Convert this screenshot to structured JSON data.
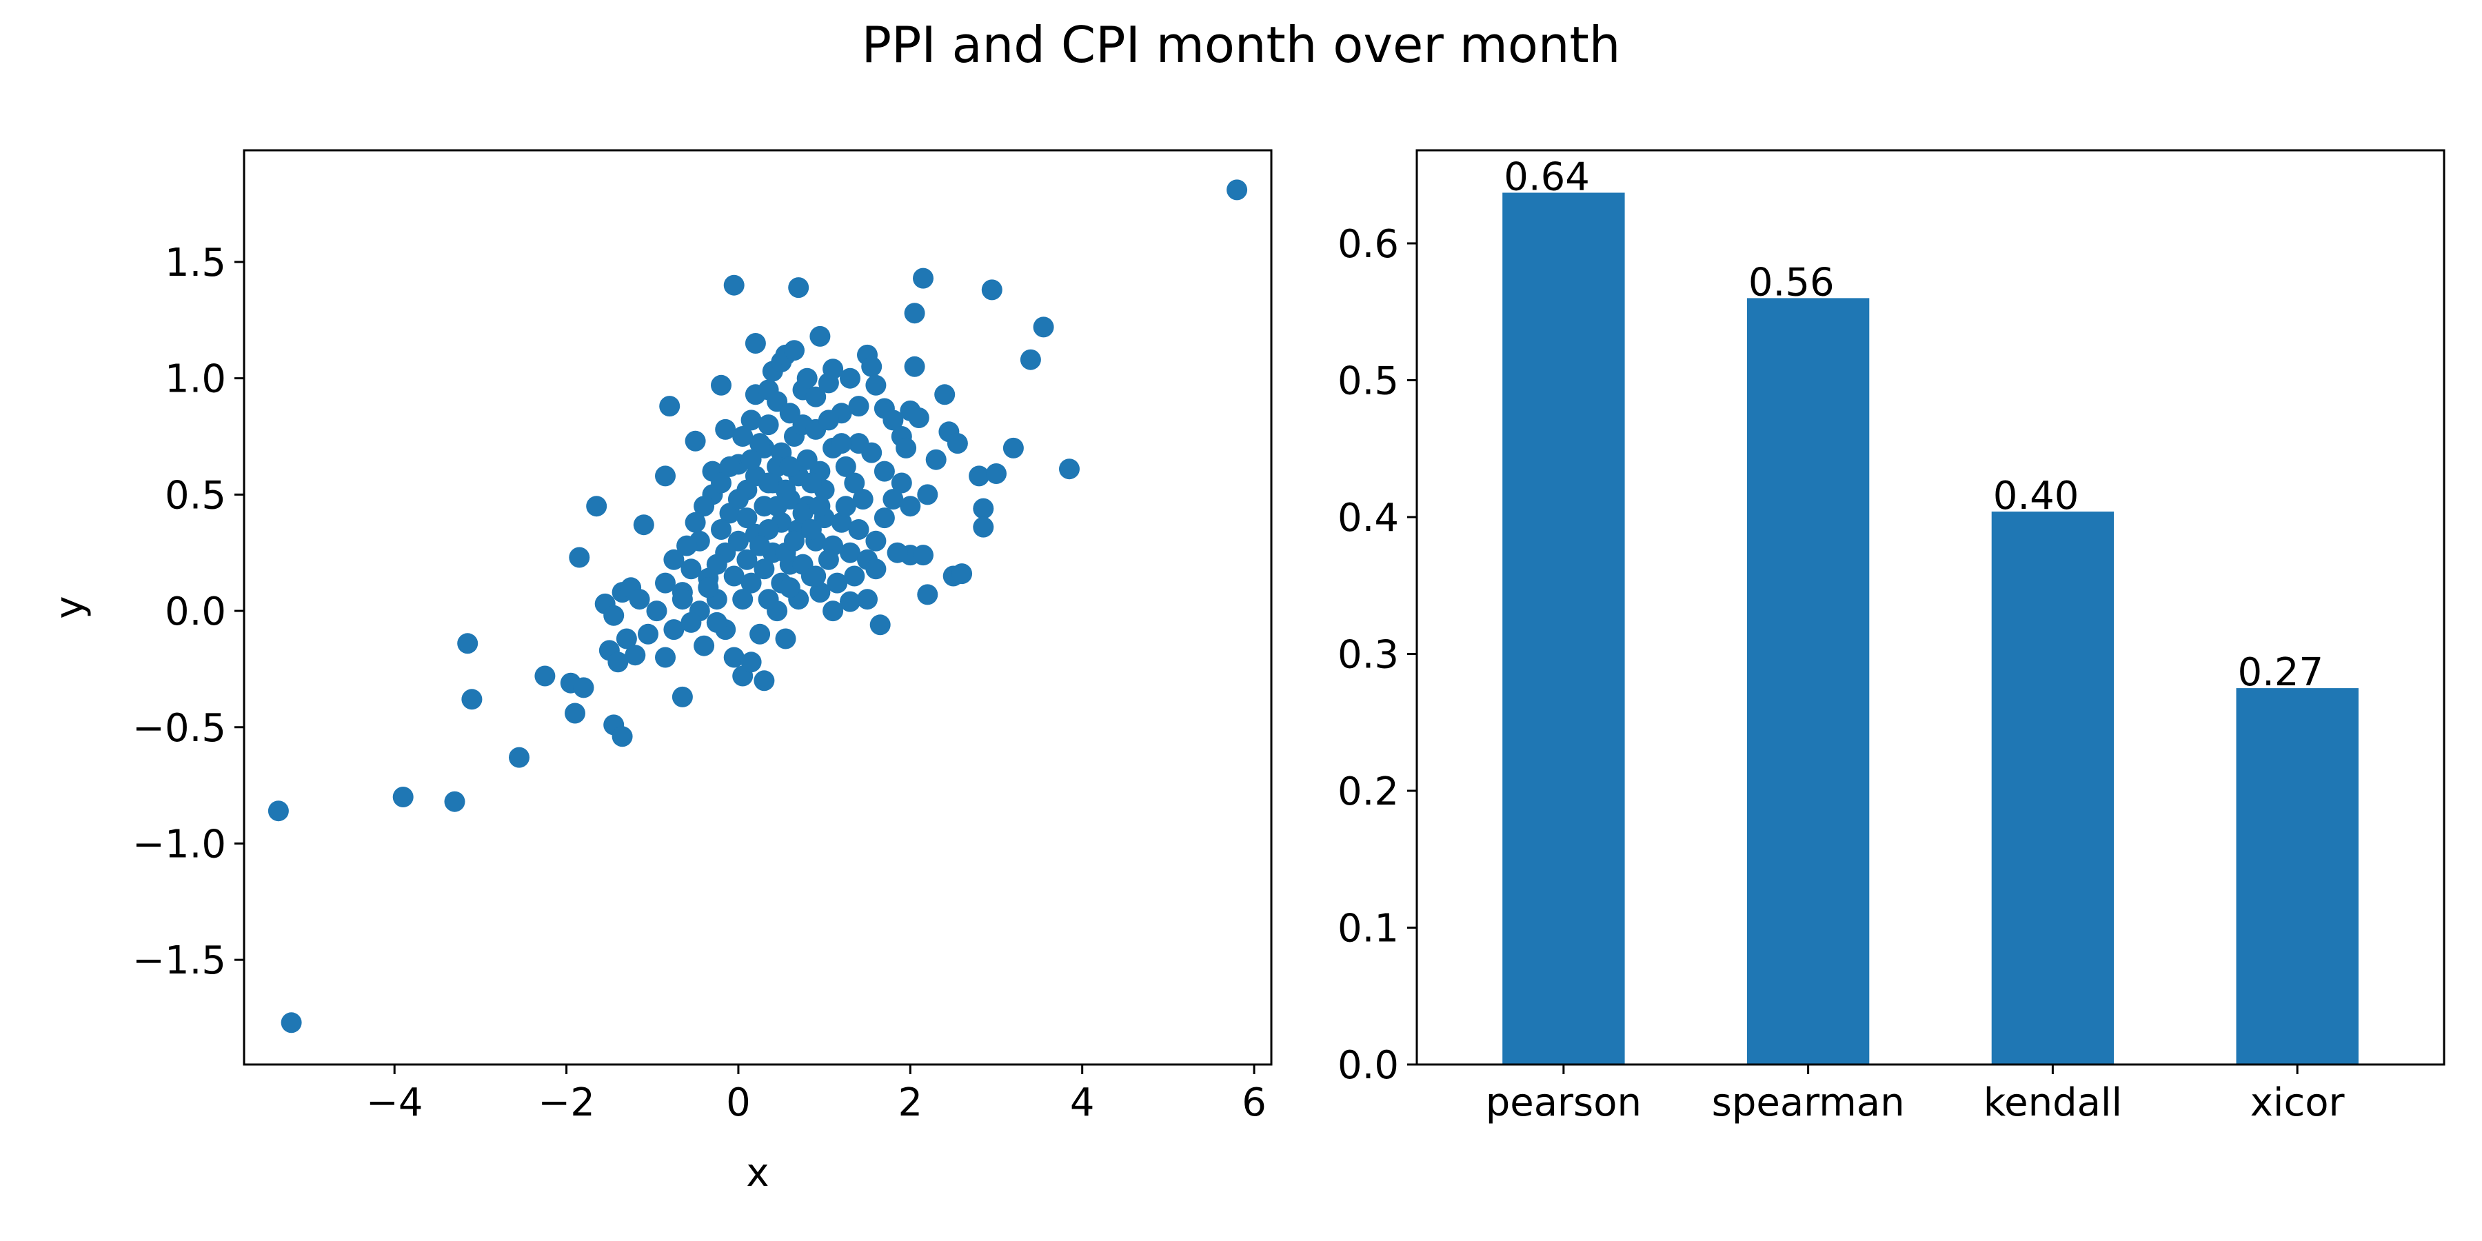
{
  "figure": {
    "title": "PPI and CPI month over month"
  },
  "colors": {
    "series": "#1f77b4"
  },
  "chart_data": [
    {
      "type": "scatter",
      "title": "",
      "xlabel": "x",
      "ylabel": "y",
      "xlim": [
        -5.75,
        6.2
      ],
      "ylim": [
        -1.95,
        1.98
      ],
      "xticks": [
        -4,
        -2,
        0,
        2,
        4,
        6
      ],
      "xtick_labels": [
        "−4",
        "−2",
        "0",
        "2",
        "4",
        "6"
      ],
      "yticks": [
        -1.5,
        -1.0,
        -0.5,
        0.0,
        0.5,
        1.0,
        1.5
      ],
      "ytick_labels": [
        "−1.5",
        "−1.0",
        "−0.5",
        "0.0",
        "0.5",
        "1.0",
        "1.5"
      ],
      "grid": false,
      "points": [
        [
          5.8,
          1.81
        ],
        [
          -5.2,
          -1.77
        ],
        [
          -5.35,
          -0.86
        ],
        [
          -3.9,
          -0.8
        ],
        [
          -3.3,
          -0.82
        ],
        [
          -3.15,
          -0.14
        ],
        [
          -3.1,
          -0.38
        ],
        [
          -2.55,
          -0.63
        ],
        [
          -2.25,
          -0.28
        ],
        [
          -1.9,
          -0.44
        ],
        [
          -1.95,
          -0.31
        ],
        [
          -1.8,
          -0.33
        ],
        [
          -1.45,
          -0.49
        ],
        [
          -1.35,
          -0.54
        ],
        [
          -1.85,
          0.23
        ],
        [
          -1.65,
          0.45
        ],
        [
          -1.5,
          -0.17
        ],
        [
          -1.4,
          -0.22
        ],
        [
          -1.3,
          -0.12
        ],
        [
          -1.2,
          -0.19
        ],
        [
          -1.55,
          0.03
        ],
        [
          -1.45,
          -0.02
        ],
        [
          -1.35,
          0.08
        ],
        [
          -1.25,
          0.1
        ],
        [
          -1.1,
          0.37
        ],
        [
          -1.15,
          0.05
        ],
        [
          -1.05,
          -0.1
        ],
        [
          -0.95,
          0.0
        ],
        [
          -0.85,
          -0.2
        ],
        [
          -0.75,
          -0.08
        ],
        [
          -0.65,
          -0.37
        ],
        [
          -0.85,
          0.12
        ],
        [
          -0.75,
          0.22
        ],
        [
          -0.65,
          0.08
        ],
        [
          -0.55,
          0.18
        ],
        [
          -0.45,
          0.3
        ],
        [
          -0.35,
          0.14
        ],
        [
          -0.25,
          0.05
        ],
        [
          -0.15,
          -0.08
        ],
        [
          -0.05,
          -0.2
        ],
        [
          0.05,
          -0.28
        ],
        [
          0.15,
          -0.22
        ],
        [
          0.25,
          -0.1
        ],
        [
          0.3,
          -0.3
        ],
        [
          0.45,
          0.0
        ],
        [
          0.55,
          -0.12
        ],
        [
          -0.85,
          0.58
        ],
        [
          -0.8,
          0.88
        ],
        [
          -0.5,
          0.73
        ],
        [
          -0.2,
          0.97
        ],
        [
          -0.15,
          0.78
        ],
        [
          -0.05,
          1.4
        ],
        [
          0.0,
          0.63
        ],
        [
          0.1,
          0.52
        ],
        [
          0.15,
          0.82
        ],
        [
          0.2,
          0.93
        ],
        [
          0.2,
          1.15
        ],
        [
          0.3,
          0.7
        ],
        [
          0.35,
          0.95
        ],
        [
          0.4,
          1.03
        ],
        [
          0.5,
          1.07
        ],
        [
          0.55,
          1.1
        ],
        [
          0.65,
          1.12
        ],
        [
          0.7,
          1.39
        ],
        [
          0.75,
          0.95
        ],
        [
          0.8,
          1.0
        ],
        [
          0.9,
          0.92
        ],
        [
          0.95,
          1.18
        ],
        [
          1.05,
          0.98
        ],
        [
          1.1,
          1.04
        ],
        [
          1.2,
          0.85
        ],
        [
          1.3,
          1.0
        ],
        [
          1.4,
          0.88
        ],
        [
          1.5,
          1.1
        ],
        [
          1.55,
          1.05
        ],
        [
          1.6,
          0.97
        ],
        [
          1.7,
          0.87
        ],
        [
          1.8,
          0.82
        ],
        [
          1.9,
          0.75
        ],
        [
          1.95,
          0.7
        ],
        [
          2.0,
          0.86
        ],
        [
          2.05,
          1.28
        ],
        [
          2.05,
          1.05
        ],
        [
          2.15,
          1.43
        ],
        [
          2.1,
          0.83
        ],
        [
          2.2,
          0.5
        ],
        [
          2.3,
          0.65
        ],
        [
          2.4,
          0.93
        ],
        [
          2.45,
          0.77
        ],
        [
          2.55,
          0.72
        ],
        [
          2.0,
          0.24
        ],
        [
          2.15,
          0.24
        ],
        [
          2.2,
          0.07
        ],
        [
          2.5,
          0.15
        ],
        [
          2.6,
          0.16
        ],
        [
          2.8,
          0.58
        ],
        [
          2.85,
          0.44
        ],
        [
          2.85,
          0.36
        ],
        [
          2.95,
          1.38
        ],
        [
          3.0,
          0.59
        ],
        [
          3.2,
          0.7
        ],
        [
          3.4,
          1.08
        ],
        [
          3.55,
          1.22
        ],
        [
          3.85,
          0.61
        ],
        [
          1.65,
          -0.06
        ],
        [
          1.5,
          0.05
        ],
        [
          1.3,
          0.04
        ],
        [
          1.1,
          0.0
        ],
        [
          0.95,
          0.08
        ],
        [
          0.85,
          0.15
        ],
        [
          0.7,
          0.05
        ],
        [
          0.6,
          0.2
        ],
        [
          0.5,
          0.12
        ],
        [
          0.4,
          0.25
        ],
        [
          0.3,
          0.18
        ],
        [
          0.2,
          0.33
        ],
        [
          0.1,
          0.22
        ],
        [
          0.0,
          0.3
        ],
        [
          -0.1,
          0.42
        ],
        [
          -0.2,
          0.35
        ],
        [
          -0.3,
          0.5
        ],
        [
          -0.4,
          0.45
        ],
        [
          -0.5,
          0.38
        ],
        [
          -0.6,
          0.28
        ],
        [
          -0.3,
          0.6
        ],
        [
          -0.2,
          0.55
        ],
        [
          -0.1,
          0.62
        ],
        [
          0.0,
          0.48
        ],
        [
          0.1,
          0.4
        ],
        [
          0.2,
          0.58
        ],
        [
          0.3,
          0.45
        ],
        [
          0.4,
          0.55
        ],
        [
          0.5,
          0.38
        ],
        [
          0.6,
          0.48
        ],
        [
          0.7,
          0.35
        ],
        [
          0.8,
          0.45
        ],
        [
          0.9,
          0.3
        ],
        [
          1.0,
          0.4
        ],
        [
          1.1,
          0.28
        ],
        [
          1.2,
          0.38
        ],
        [
          1.3,
          0.25
        ],
        [
          1.4,
          0.35
        ],
        [
          1.5,
          0.22
        ],
        [
          1.6,
          0.3
        ],
        [
          1.7,
          0.4
        ],
        [
          1.8,
          0.48
        ],
        [
          1.9,
          0.55
        ],
        [
          2.0,
          0.45
        ],
        [
          1.7,
          0.6
        ],
        [
          1.55,
          0.68
        ],
        [
          1.4,
          0.72
        ],
        [
          1.25,
          0.62
        ],
        [
          1.1,
          0.7
        ],
        [
          0.95,
          0.6
        ],
        [
          0.8,
          0.65
        ],
        [
          0.65,
          0.75
        ],
        [
          0.5,
          0.68
        ],
        [
          0.35,
          0.8
        ],
        [
          0.25,
          0.72
        ],
        [
          0.15,
          0.65
        ],
        [
          0.05,
          0.75
        ],
        [
          0.45,
          0.9
        ],
        [
          0.6,
          0.85
        ],
        [
          0.75,
          0.8
        ],
        [
          0.9,
          0.78
        ],
        [
          1.05,
          0.82
        ],
        [
          1.2,
          0.72
        ],
        [
          1.35,
          0.55
        ],
        [
          1.45,
          0.48
        ],
        [
          1.25,
          0.45
        ],
        [
          1.0,
          0.52
        ],
        [
          0.85,
          0.55
        ],
        [
          0.7,
          0.58
        ],
        [
          0.55,
          0.52
        ],
        [
          0.45,
          0.62
        ],
        [
          0.35,
          0.35
        ],
        [
          0.25,
          0.28
        ],
        [
          0.15,
          0.12
        ],
        [
          0.05,
          0.05
        ],
        [
          -0.05,
          0.15
        ],
        [
          -0.15,
          0.25
        ],
        [
          -0.25,
          0.2
        ],
        [
          -0.35,
          0.1
        ],
        [
          -0.45,
          0.0
        ],
        [
          -0.55,
          -0.05
        ],
        [
          -0.65,
          0.05
        ],
        [
          -0.4,
          -0.15
        ],
        [
          -0.25,
          -0.05
        ],
        [
          0.35,
          0.05
        ],
        [
          0.6,
          0.1
        ],
        [
          0.75,
          0.2
        ],
        [
          0.9,
          0.15
        ],
        [
          1.05,
          0.22
        ],
        [
          1.15,
          0.12
        ],
        [
          1.35,
          0.15
        ],
        [
          1.6,
          0.18
        ],
        [
          1.85,
          0.25
        ],
        [
          0.55,
          0.25
        ],
        [
          0.65,
          0.3
        ],
        [
          0.75,
          0.42
        ],
        [
          0.45,
          0.45
        ],
        [
          0.35,
          0.55
        ],
        [
          0.6,
          0.62
        ],
        [
          0.85,
          0.35
        ],
        [
          0.95,
          0.45
        ]
      ]
    },
    {
      "type": "bar",
      "title": "",
      "xlabel": "",
      "ylabel": "",
      "categories": [
        "pearson",
        "spearman",
        "kendall",
        "xicor"
      ],
      "values": [
        0.637,
        0.56,
        0.404,
        0.275
      ],
      "data_labels": [
        "0.64",
        "0.56",
        "0.40",
        "0.27"
      ],
      "ylim": [
        0.0,
        0.668
      ],
      "yticks": [
        0.0,
        0.1,
        0.2,
        0.3,
        0.4,
        0.5,
        0.6
      ],
      "ytick_labels": [
        "0.0",
        "0.1",
        "0.2",
        "0.3",
        "0.4",
        "0.5",
        "0.6"
      ],
      "grid": false
    }
  ]
}
